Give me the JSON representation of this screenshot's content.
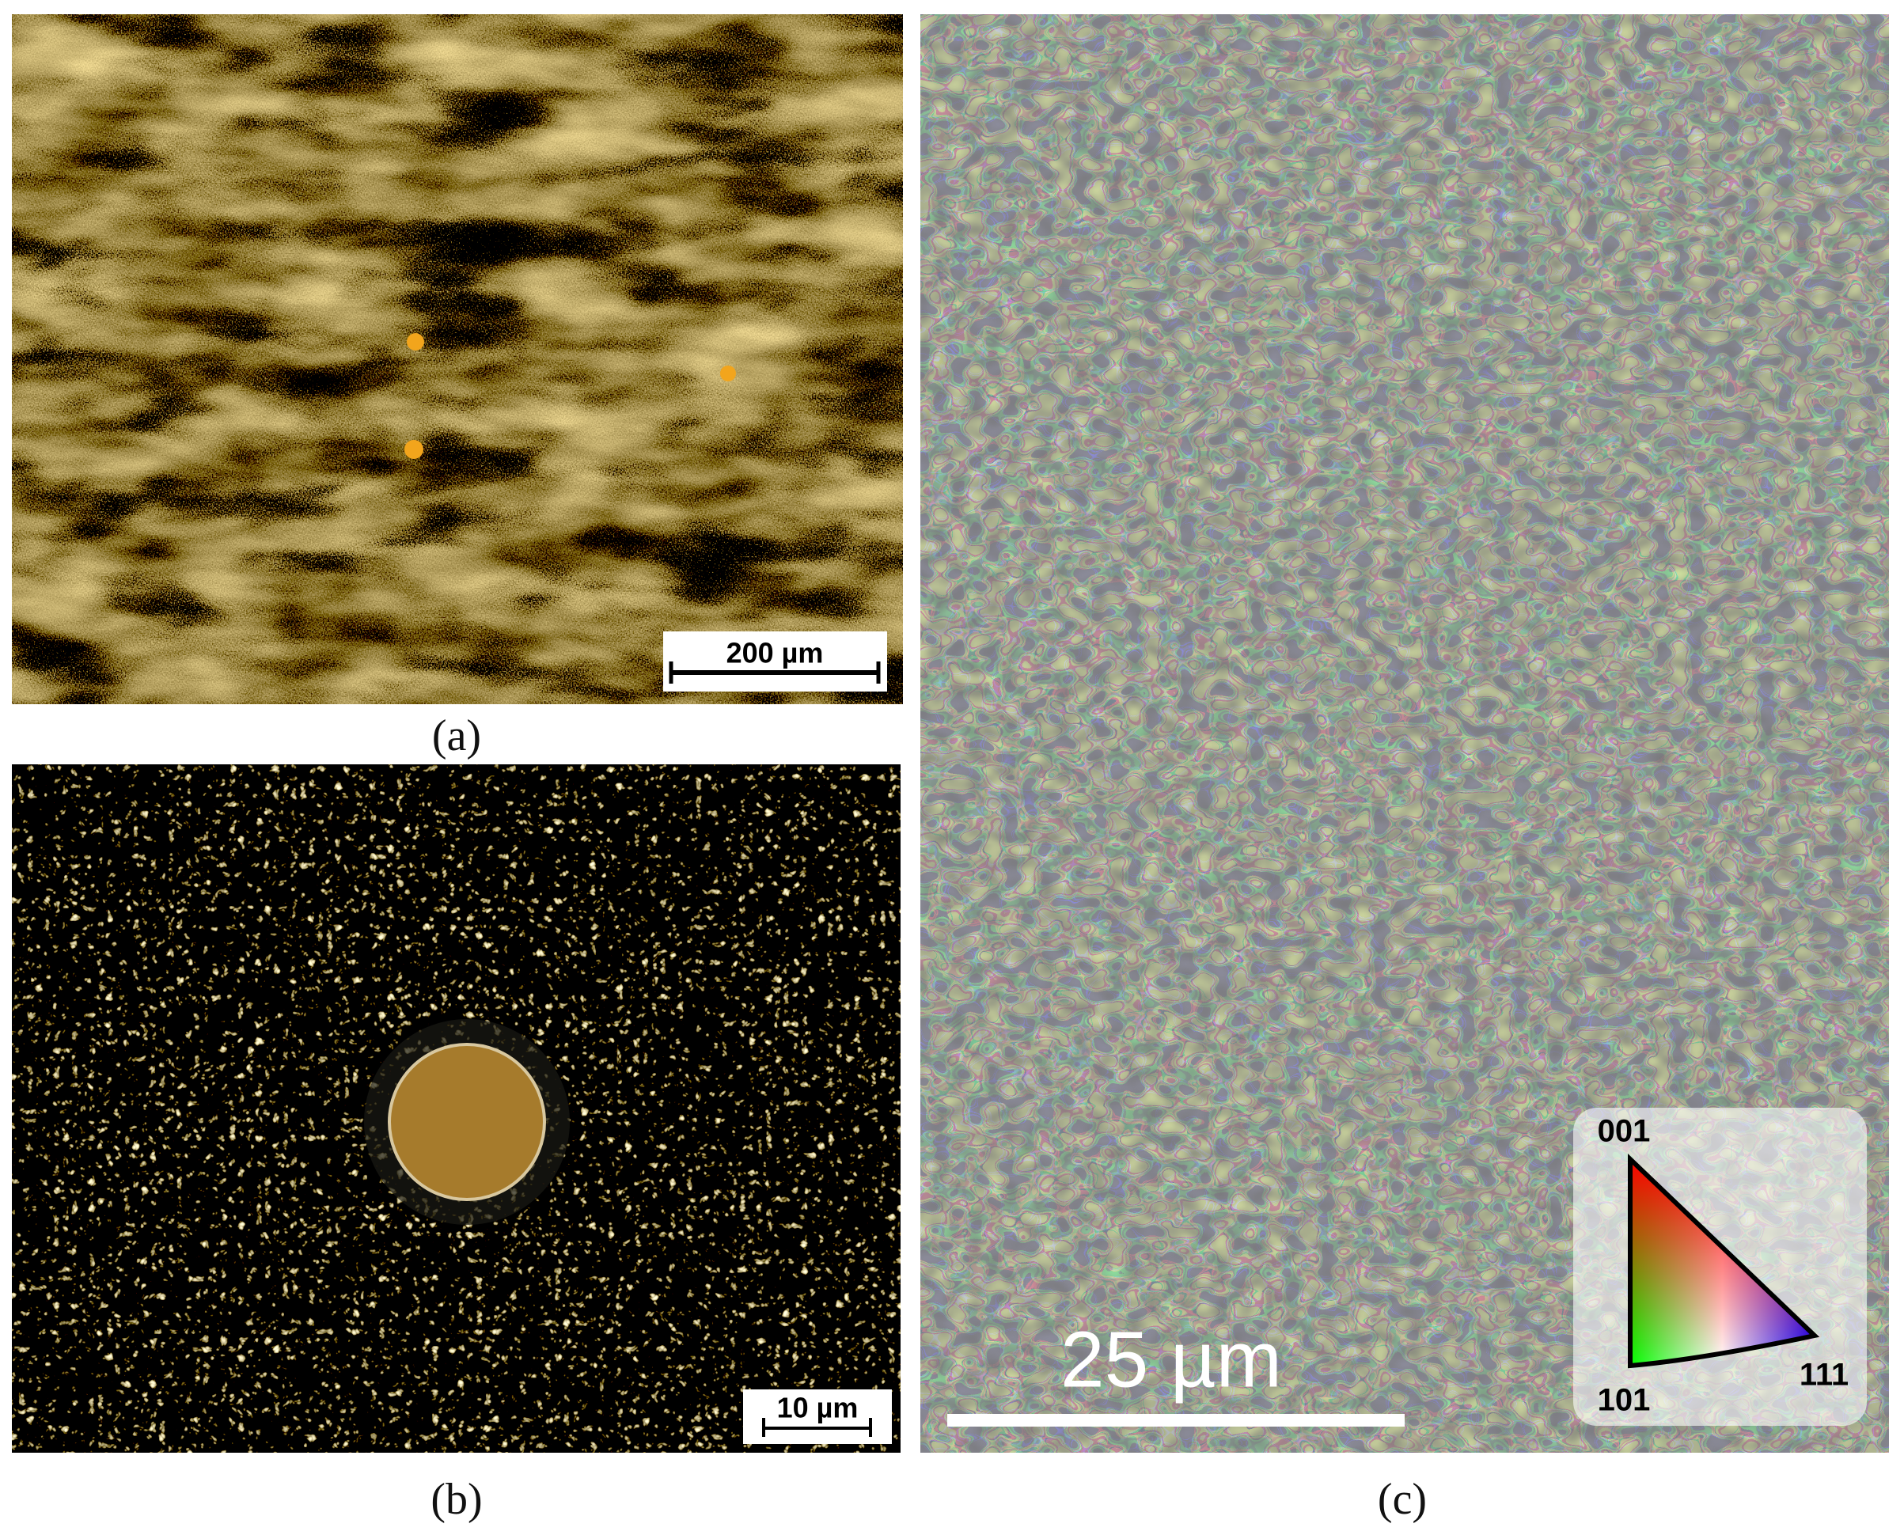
{
  "panels": [
    {
      "label": "(a)",
      "scale_bar": "200 µm"
    },
    {
      "label": "(b)",
      "scale_bar": "10 µm"
    },
    {
      "label": "(c)",
      "scale_bar": "25 µm",
      "legend": {
        "top": "001",
        "bottom_left": "101",
        "bottom_right": "111"
      }
    }
  ]
}
